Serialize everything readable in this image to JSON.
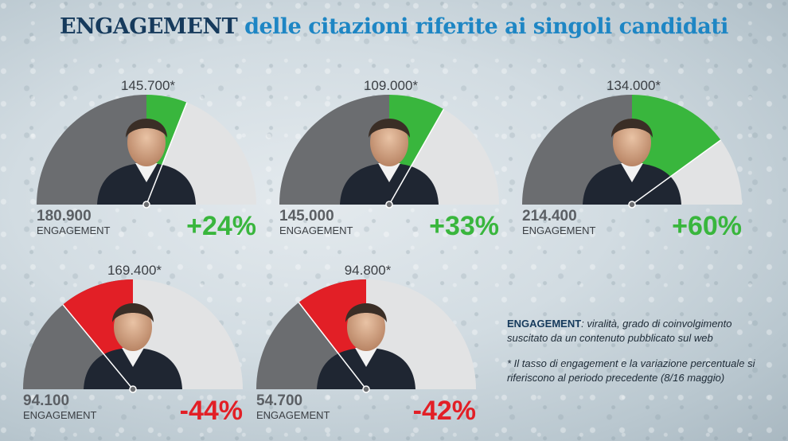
{
  "title": {
    "highlight": "ENGAGEMENT",
    "rest": "delle citazioni riferite ai singoli candidati"
  },
  "colors": {
    "increase": "#39b63d",
    "decrease": "#e21f26",
    "base": "#6b6d70",
    "track": "#e2e3e4",
    "title_dark": "#163a5c",
    "title_accent": "#1e86c4"
  },
  "chart_data": {
    "type": "gauge",
    "series_labels": {
      "current": "*",
      "unit_label": "ENGAGEMENT"
    },
    "gauges": [
      {
        "value": "145.700*",
        "previous": "180.900",
        "previous_label": "ENGAGEMENT",
        "change": "+24%",
        "change_num": 24
      },
      {
        "value": "109.000*",
        "previous": "145.000",
        "previous_label": "ENGAGEMENT",
        "change": "+33%",
        "change_num": 33
      },
      {
        "value": "134.000*",
        "previous": "214.400",
        "previous_label": "ENGAGEMENT",
        "change": "+60%",
        "change_num": 60
      },
      {
        "value": "169.400*",
        "previous": "94.100",
        "previous_label": "ENGAGEMENT",
        "change": "-44%",
        "change_num": -44
      },
      {
        "value": "94.800*",
        "previous": "54.700",
        "previous_label": "ENGAGEMENT",
        "change": "-42%",
        "change_num": -42
      }
    ]
  },
  "legend": {
    "term": "ENGAGEMENT",
    "definition": ": viralità, grado di coinvolgimento suscitato da un contenuto pubblicato sul web",
    "note": "* Il tasso di engagement e la variazione percentuale si riferiscono al periodo precedente (8/16 maggio)"
  }
}
